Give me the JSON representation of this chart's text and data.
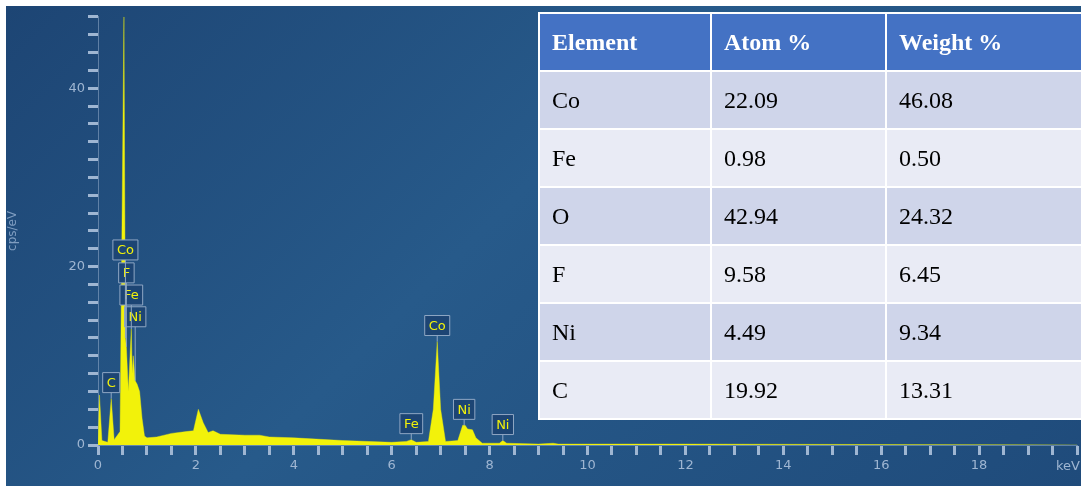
{
  "chart_data": [
    {
      "type": "area",
      "xlabel": "keV",
      "ylabel": "cps/eV",
      "x": [
        0,
        0.03,
        0.08,
        0.2,
        0.27,
        0.33,
        0.45,
        0.53,
        0.56,
        0.58,
        0.62,
        0.68,
        0.7,
        0.72,
        0.76,
        0.8,
        0.85,
        0.9,
        0.95,
        1.0,
        1.2,
        1.5,
        1.8,
        1.95,
        2.05,
        2.15,
        2.25,
        2.35,
        2.5,
        3,
        3.3,
        3.5,
        4,
        5,
        6,
        6.3,
        6.4,
        6.5,
        6.75,
        6.85,
        6.93,
        7.0,
        7.1,
        7.35,
        7.45,
        7.5,
        7.55,
        7.65,
        7.72,
        7.85,
        8.2,
        8.27,
        8.35,
        9,
        9.3,
        9.4,
        10,
        12,
        20
      ],
      "values": [
        0,
        5.6,
        0.5,
        0.3,
        5.2,
        0.6,
        1.5,
        48,
        12,
        11,
        6,
        13,
        8,
        10,
        7.2,
        6.8,
        6,
        3,
        1,
        0.8,
        0.9,
        1.3,
        1.5,
        1.6,
        4,
        2.5,
        1.4,
        1.6,
        1.2,
        1.1,
        1.1,
        0.9,
        0.8,
        0.5,
        0.3,
        0.4,
        0.6,
        0.3,
        0.4,
        4,
        11.6,
        4,
        0.4,
        0.5,
        2.2,
        2.2,
        1.8,
        1.7,
        0.8,
        0.2,
        0.2,
        0.5,
        0.2,
        0.1,
        0.2,
        0.1,
        0.1,
        0.1,
        0
      ],
      "color": "#f2f20a",
      "xlim": [
        0,
        20
      ],
      "xticks": [
        0,
        {
          "value": 0.5,
          "label": null
        },
        {
          "value": 1,
          "label": null
        },
        {
          "value": 1.5,
          "label": null
        },
        2,
        {
          "value": 2.5,
          "label": null
        },
        {
          "value": 3,
          "label": null
        },
        {
          "value": 3.5,
          "label": null
        },
        4,
        {
          "value": 4.5,
          "label": null
        },
        {
          "value": 5,
          "label": null
        },
        {
          "value": 5.5,
          "label": null
        },
        6,
        {
          "value": 6.5,
          "label": null
        },
        {
          "value": 7,
          "label": null
        },
        {
          "value": 7.5,
          "label": null
        },
        8,
        {
          "value": 8.5,
          "label": null
        },
        {
          "value": 9,
          "label": null
        },
        {
          "value": 9.5,
          "label": null
        },
        10,
        {
          "value": 10.5,
          "label": null
        },
        {
          "value": 11,
          "label": null
        },
        {
          "value": 11.5,
          "label": null
        },
        12,
        {
          "value": 12.5,
          "label": null
        },
        {
          "value": 13,
          "label": null
        },
        {
          "value": 13.5,
          "label": null
        },
        14,
        {
          "value": 14.5,
          "label": null
        },
        {
          "value": 15,
          "label": null
        },
        {
          "value": 15.5,
          "label": null
        },
        16,
        {
          "value": 16.5,
          "label": null
        },
        {
          "value": 17,
          "label": null
        },
        {
          "value": 17.5,
          "label": null
        },
        18,
        {
          "value": 18.5,
          "label": null
        },
        {
          "value": 19,
          "label": null
        },
        {
          "value": 19.5,
          "label": null
        },
        {
          "value": 20,
          "label": null
        }
      ],
      "ylim": [
        0,
        48
      ],
      "yticks": [
        0,
        {
          "value": 2,
          "label": null
        },
        {
          "value": 4,
          "label": null
        },
        {
          "value": 6,
          "label": null
        },
        {
          "value": 8,
          "label": null
        },
        {
          "value": 10,
          "label": null
        },
        {
          "value": 12,
          "label": null
        },
        {
          "value": 14,
          "label": null
        },
        {
          "value": 16,
          "label": null
        },
        {
          "value": 18,
          "label": null
        },
        20,
        {
          "value": 22,
          "label": null
        },
        {
          "value": 24,
          "label": null
        },
        {
          "value": 26,
          "label": null
        },
        {
          "value": 28,
          "label": null
        },
        {
          "value": 30,
          "label": null
        },
        {
          "value": 32,
          "label": null
        },
        {
          "value": 34,
          "label": null
        },
        {
          "value": 36,
          "label": null
        },
        {
          "value": 38,
          "label": null
        },
        40,
        {
          "value": 42,
          "label": null
        },
        {
          "value": 44,
          "label": null
        },
        {
          "value": 46,
          "label": null
        },
        {
          "value": 48,
          "label": null
        }
      ],
      "annotations": [
        {
          "text": "C",
          "x": 0.27,
          "y": 5.2
        },
        {
          "text": "Ni",
          "x": 0.76,
          "y": 7.2
        },
        {
          "text": "Fe",
          "x": 0.68,
          "y": 13
        },
        {
          "text": "F",
          "x": 0.58,
          "y": 11
        },
        {
          "text": "Co",
          "x": 0.56,
          "y": 12
        },
        {
          "text": "Fe",
          "x": 6.4,
          "y": 0.6
        },
        {
          "text": "Co",
          "x": 6.93,
          "y": 11.6
        },
        {
          "text": "Ni",
          "x": 7.48,
          "y": 2.2
        },
        {
          "text": "Ni",
          "x": 8.27,
          "y": 0.5
        }
      ]
    },
    {
      "type": "other",
      "annotations": [
        "Element",
        "Atom %",
        "Weight %",
        "Co",
        "22.09",
        "46.08",
        "Fe",
        "0.98",
        "0.50",
        "O",
        "42.94",
        "24.32",
        "F",
        "9.58",
        "6.45",
        "Ni",
        "4.49",
        "9.34",
        "C",
        "19.92",
        "13.31"
      ]
    }
  ]
}
